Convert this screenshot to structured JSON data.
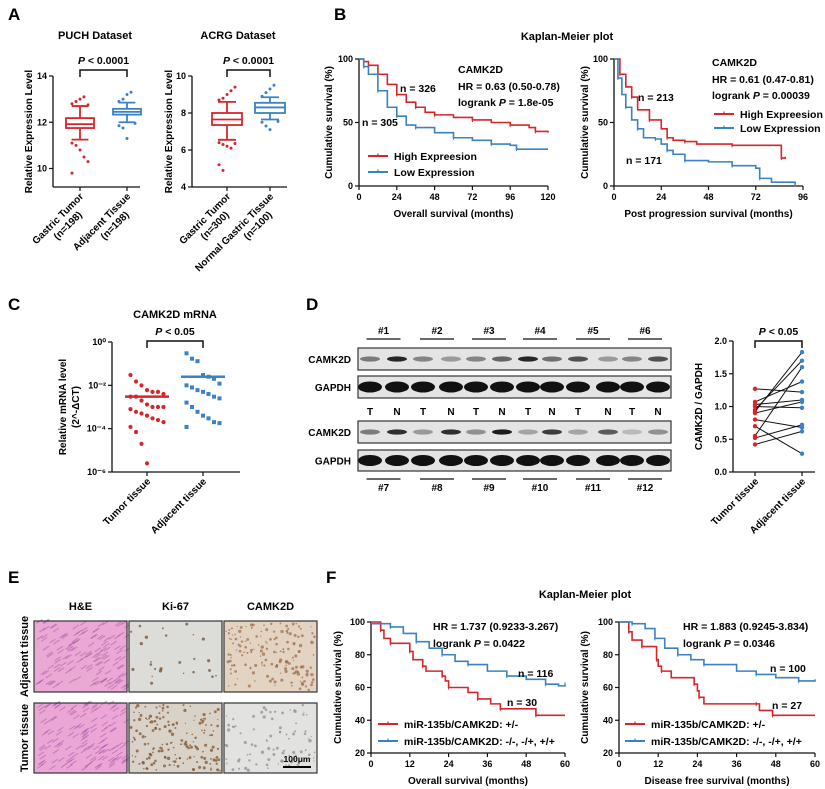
{
  "colors": {
    "tumor_red": "#d7262b",
    "normal_blue": "#3b82c4",
    "axis": "#111111"
  },
  "panels": {
    "A": {
      "label": "A"
    },
    "B": {
      "label": "B",
      "title": "Kaplan-Meier plot"
    },
    "C": {
      "label": "C"
    },
    "D": {
      "label": "D"
    },
    "E": {
      "label": "E"
    },
    "F": {
      "label": "F",
      "title": "Kaplan-Meier plot"
    }
  },
  "western_blot": {
    "samples_top": [
      "#1",
      "#2",
      "#3",
      "#4",
      "#5",
      "#6"
    ],
    "samples_bottom": [
      "#7",
      "#8",
      "#9",
      "#10",
      "#11",
      "#12"
    ],
    "row_labels": [
      "CAMK2D",
      "GAPDH",
      "CAMK2D",
      "GAPDH"
    ],
    "lanes": [
      "T",
      "N"
    ]
  },
  "ihc": {
    "columns": [
      "H&E",
      "Ki-67",
      "CAMK2D"
    ],
    "rows": [
      "Adjacent tissue",
      "Tumor tissue"
    ],
    "scale_bar": "100μm"
  },
  "chart_data": [
    {
      "id": "A-PUCH",
      "type": "box",
      "title": "PUCH Dataset",
      "ylabel": "Relative Expression Level",
      "ylim": [
        9.2,
        14
      ],
      "yticks": [
        10,
        12,
        14
      ],
      "categories": [
        [
          "Gastric Tumor",
          "(n=198)"
        ],
        [
          "Adjacent Tissue",
          "(n=198)"
        ]
      ],
      "significance": [
        "",
        "P",
        " < 0.0001"
      ],
      "series": [
        {
          "color": "#d7262b",
          "q1": 11.75,
          "median": 11.92,
          "q3": 12.18,
          "whisker_low": 11.25,
          "whisker_high": 12.7,
          "outliers": [
            12.8,
            12.9,
            13.0,
            13.1,
            12.75,
            11.1,
            11.0,
            10.8,
            10.5,
            10.3,
            9.8
          ]
        },
        {
          "color": "#3b82c4",
          "q1": 12.33,
          "median": 12.45,
          "q3": 12.58,
          "whisker_low": 12.0,
          "whisker_high": 12.85,
          "outliers": [
            12.9,
            13.0,
            13.2,
            13.3,
            11.95,
            11.85,
            11.75,
            11.3
          ]
        }
      ]
    },
    {
      "id": "A-ACRG",
      "type": "box",
      "title": "ACRG Dataset",
      "ylabel": "Relative Expression Level",
      "ylim": [
        4,
        10
      ],
      "yticks": [
        4,
        6,
        8,
        10
      ],
      "categories": [
        [
          "Gastric Tumor",
          "(n=300)"
        ],
        [
          "Normal Gastric Tissue",
          "(n=100)"
        ]
      ],
      "significance": [
        "",
        "P",
        " < 0.0001"
      ],
      "series": [
        {
          "color": "#d7262b",
          "q1": 7.35,
          "median": 7.65,
          "q3": 8.0,
          "whisker_low": 6.55,
          "whisker_high": 8.6,
          "outliers": [
            8.7,
            8.8,
            9.0,
            9.2,
            9.4,
            6.4,
            6.3,
            6.2,
            6.1,
            6.35,
            5.2,
            4.9
          ]
        },
        {
          "color": "#3b82c4",
          "q1": 8.0,
          "median": 8.3,
          "q3": 8.55,
          "whisker_low": 7.65,
          "whisker_high": 8.85,
          "outliers": [
            8.9,
            9.1,
            9.3,
            9.5,
            7.55,
            7.5,
            7.3,
            7.1
          ]
        }
      ]
    },
    {
      "id": "B-OS",
      "type": "line",
      "subtype": "kaplan-meier",
      "xlabel": "Overall survival (months)",
      "ylabel": "Cumulative survival (%)",
      "xlim": [
        0,
        120
      ],
      "ylim": [
        0,
        100
      ],
      "xticks": [
        0,
        24,
        48,
        72,
        96,
        120
      ],
      "yticks": [
        0,
        50,
        100
      ],
      "gene": "CAMK2D",
      "hr": "HR = 0.63 (0.50-0.78)",
      "logrank": [
        "logrank ",
        "P",
        " = 1.8e-05"
      ],
      "legend": "bottom-left",
      "series": [
        {
          "name": "High Expreesion",
          "n_label": "n = 326",
          "color": "#d7262b",
          "points": [
            [
              0,
              100
            ],
            [
              3,
              98
            ],
            [
              6,
              95
            ],
            [
              12,
              88
            ],
            [
              18,
              80
            ],
            [
              24,
              72
            ],
            [
              30,
              66
            ],
            [
              36,
              62
            ],
            [
              42,
              58
            ],
            [
              48,
              56
            ],
            [
              60,
              54
            ],
            [
              72,
              52
            ],
            [
              84,
              50
            ],
            [
              96,
              48
            ],
            [
              108,
              46
            ],
            [
              112,
              43
            ],
            [
              120,
              42
            ]
          ]
        },
        {
          "name": "Low Expression",
          "n_label": "n = 305",
          "color": "#3b82c4",
          "points": [
            [
              0,
              100
            ],
            [
              3,
              94
            ],
            [
              6,
              88
            ],
            [
              12,
              75
            ],
            [
              18,
              62
            ],
            [
              24,
              55
            ],
            [
              30,
              48
            ],
            [
              36,
              46
            ],
            [
              48,
              42
            ],
            [
              60,
              38
            ],
            [
              72,
              36
            ],
            [
              84,
              33
            ],
            [
              96,
              32
            ],
            [
              100,
              29
            ],
            [
              120,
              29
            ]
          ]
        }
      ]
    },
    {
      "id": "B-PPS",
      "type": "line",
      "subtype": "kaplan-meier",
      "xlabel": "Post progression survival (months)",
      "ylabel": "Cumulative survival (%)",
      "xlim": [
        0,
        96
      ],
      "ylim": [
        0,
        100
      ],
      "xticks": [
        0,
        24,
        48,
        72,
        96
      ],
      "yticks": [
        0,
        50,
        100
      ],
      "gene": "CAMK2D",
      "hr": "HR = 0.61 (0.47-0.81)",
      "logrank": [
        "logrank ",
        "P",
        " = 0.00039"
      ],
      "legend": "top-right",
      "series": [
        {
          "name": "High Expreesion",
          "n_label": "n = 213",
          "color": "#d7262b",
          "points": [
            [
              0,
              100
            ],
            [
              3,
              88
            ],
            [
              6,
              78
            ],
            [
              9,
              70
            ],
            [
              12,
              60
            ],
            [
              18,
              52
            ],
            [
              24,
              45
            ],
            [
              27,
              38
            ],
            [
              30,
              36
            ],
            [
              36,
              35
            ],
            [
              42,
              33
            ],
            [
              60,
              32
            ],
            [
              84,
              32
            ],
            [
              85,
              22
            ],
            [
              87,
              23
            ]
          ]
        },
        {
          "name": "Low Expression",
          "n_label": "n = 171",
          "color": "#3b82c4",
          "points": [
            [
              0,
              100
            ],
            [
              2,
              85
            ],
            [
              4,
              72
            ],
            [
              6,
              62
            ],
            [
              9,
              52
            ],
            [
              12,
              45
            ],
            [
              15,
              38
            ],
            [
              21,
              37
            ],
            [
              24,
              33
            ],
            [
              27,
              28
            ],
            [
              30,
              25
            ],
            [
              36,
              20
            ],
            [
              48,
              19
            ],
            [
              60,
              16
            ],
            [
              72,
              14
            ],
            [
              74,
              6
            ],
            [
              80,
              3
            ],
            [
              92,
              1
            ]
          ]
        }
      ]
    },
    {
      "id": "C-mRNA",
      "type": "scatter",
      "title": "CAMK2D mRNA",
      "yscale": "log",
      "ylabel": [
        "Relative mRNA level",
        "(2^-ΔCT)"
      ],
      "ylim": [
        1e-06,
        1
      ],
      "yticks": [
        1e-06,
        0.0001,
        0.01,
        1
      ],
      "ytick_labels": [
        "10⁻⁶",
        "10⁻⁴",
        "10⁻²",
        "10⁰"
      ],
      "categories": [
        "Tumor tissue",
        "Adjacent tissue"
      ],
      "significance": [
        "",
        "P",
        " < 0.05"
      ],
      "series": [
        {
          "color": "#d7262b",
          "marker": "circle",
          "center_line": 0.003,
          "values": [
            0.03,
            0.015,
            0.01,
            0.006,
            0.005,
            0.005,
            0.004,
            0.003,
            0.003,
            0.002,
            0.0013,
            0.001,
            0.001,
            0.001,
            0.0008,
            0.0006,
            0.0005,
            0.0004,
            0.0003,
            0.00025,
            0.0002,
            0.00012,
            7e-05,
            2e-05,
            2.5e-06
          ]
        },
        {
          "color": "#3b82c4",
          "marker": "square",
          "center_line": 0.025,
          "values": [
            0.3,
            0.17,
            0.13,
            0.03,
            0.025,
            0.02,
            0.012,
            0.01,
            0.008,
            0.006,
            0.005,
            0.004,
            0.003,
            0.0025,
            0.0016,
            0.001,
            0.0006,
            0.0004,
            0.0003,
            0.0002,
            0.00018,
            0.00012
          ]
        }
      ]
    },
    {
      "id": "D-ratio",
      "type": "line",
      "subtype": "paired",
      "ylabel": "CAMK2D / GAPDH",
      "ylim": [
        0,
        2
      ],
      "yticks": [
        0,
        0.5,
        1,
        1.5,
        2
      ],
      "ytick_labels": [
        "0.0",
        "0.5",
        "1.0",
        "1.5",
        "2.0"
      ],
      "categories": [
        "Tumor tissue",
        "Adjacent tissue"
      ],
      "significance": [
        "",
        "P",
        " < 0.05"
      ],
      "pairs": [
        [
          1.27,
          1.22
        ],
        [
          1.07,
          1.38
        ],
        [
          1.03,
          1.1
        ],
        [
          1.0,
          0.98
        ],
        [
          0.95,
          1.7
        ],
        [
          0.92,
          1.83
        ],
        [
          0.9,
          1.07
        ],
        [
          0.8,
          0.68
        ],
        [
          0.7,
          0.28
        ],
        [
          0.55,
          1.6
        ],
        [
          0.52,
          0.72
        ],
        [
          0.42,
          0.62
        ]
      ],
      "colors": [
        "#d7262b",
        "#3b82c4"
      ]
    },
    {
      "id": "F-OS",
      "type": "line",
      "subtype": "kaplan-meier",
      "xlabel": "Overall survival (months)",
      "ylabel": "Cumulative survival (%)",
      "xlim": [
        0,
        60
      ],
      "ylim": [
        20,
        100
      ],
      "xticks": [
        0,
        12,
        24,
        36,
        48,
        60
      ],
      "yticks": [
        20,
        40,
        60,
        80,
        100
      ],
      "hr": "HR = 1.737 (0.9233-3.267)",
      "logrank": [
        "logrank ",
        "P",
        " = 0.0422"
      ],
      "legend": "bottom-left",
      "series": [
        {
          "name": "miR-135b/CAMK2D: +/-",
          "n_label": "n = 30",
          "color": "#d7262b",
          "points": [
            [
              0,
              100
            ],
            [
              3,
              95
            ],
            [
              4,
              90
            ],
            [
              6,
              87
            ],
            [
              11,
              87
            ],
            [
              12,
              82
            ],
            [
              13,
              77
            ],
            [
              16,
              73
            ],
            [
              17,
              70
            ],
            [
              22,
              67
            ],
            [
              23,
              64
            ],
            [
              24,
              60
            ],
            [
              30,
              57
            ],
            [
              33,
              53
            ],
            [
              37,
              50
            ],
            [
              40,
              47
            ],
            [
              50,
              47
            ],
            [
              51,
              43
            ],
            [
              60,
              43
            ]
          ]
        },
        {
          "name": "miR-135b/CAMK2D: -/-, -/+, +/+",
          "n_label": "n = 116",
          "color": "#3b82c4",
          "points": [
            [
              0,
              99
            ],
            [
              6,
              97
            ],
            [
              10,
              93
            ],
            [
              14,
              88
            ],
            [
              18,
              84
            ],
            [
              22,
              80
            ],
            [
              26,
              76
            ],
            [
              30,
              74
            ],
            [
              36,
              70
            ],
            [
              42,
              67
            ],
            [
              48,
              65
            ],
            [
              54,
              62
            ],
            [
              58,
              61
            ],
            [
              60,
              62
            ]
          ]
        }
      ]
    },
    {
      "id": "F-DFS",
      "type": "line",
      "subtype": "kaplan-meier",
      "xlabel": "Disease free survival (months)",
      "ylabel": "Cumulative survival (%)",
      "xlim": [
        0,
        60
      ],
      "ylim": [
        20,
        100
      ],
      "xticks": [
        0,
        12,
        24,
        36,
        48,
        60
      ],
      "yticks": [
        20,
        40,
        60,
        80,
        100
      ],
      "hr": "HR = 1.883 (0.9245-3.834)",
      "logrank": [
        "logrank ",
        "P",
        " = 0.0346"
      ],
      "legend": "bottom-left",
      "series": [
        {
          "name": "miR-135b/CAMK2D: +/-",
          "n_label": "n = 27",
          "color": "#d7262b",
          "points": [
            [
              0,
              100
            ],
            [
              3,
              94
            ],
            [
              4,
              89
            ],
            [
              7,
              85
            ],
            [
              11,
              85
            ],
            [
              11.5,
              77
            ],
            [
              12,
              73
            ],
            [
              13,
              70
            ],
            [
              16,
              66
            ],
            [
              23,
              62
            ],
            [
              24,
              58
            ],
            [
              24.5,
              54
            ],
            [
              26,
              50
            ],
            [
              42,
              50
            ],
            [
              43,
              46
            ],
            [
              47,
              43
            ],
            [
              60,
              43
            ]
          ]
        },
        {
          "name": "miR-135b/CAMK2D: -/-, -/+, +/+",
          "n_label": "n = 100",
          "color": "#3b82c4",
          "points": [
            [
              0,
              100
            ],
            [
              4,
              99
            ],
            [
              8,
              96
            ],
            [
              11,
              90
            ],
            [
              14,
              84
            ],
            [
              18,
              80
            ],
            [
              22,
              77
            ],
            [
              26,
              74
            ],
            [
              36,
              70
            ],
            [
              42,
              68
            ],
            [
              48,
              66
            ],
            [
              55,
              64
            ],
            [
              60,
              65
            ]
          ]
        }
      ]
    }
  ]
}
